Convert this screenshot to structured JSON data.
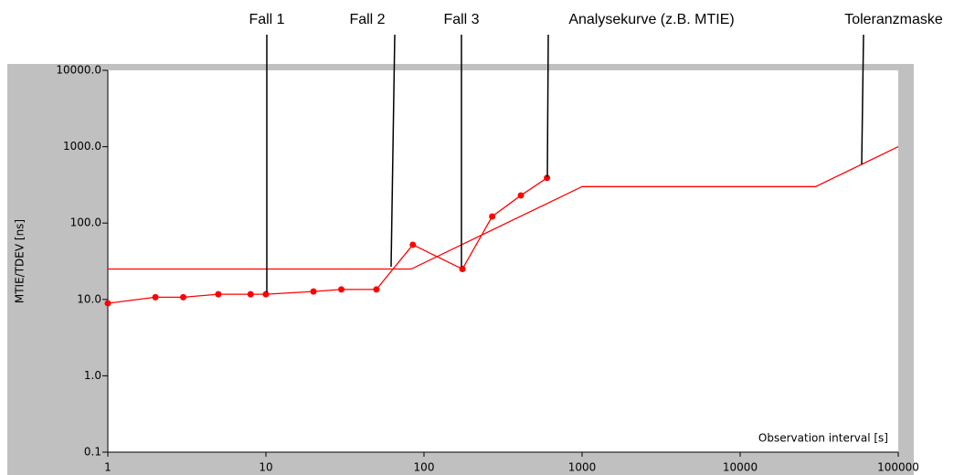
{
  "chart_data": {
    "type": "line",
    "y_label": "MTIE/TDEV [ns]",
    "x_label": "Observation interval  [s]",
    "xlog": true,
    "ylog": true,
    "xlim": [
      1,
      100000
    ],
    "ylim": [
      0.1,
      10000
    ],
    "xticks": [
      1,
      10,
      100,
      1000,
      10000,
      100000
    ],
    "yticks": [
      {
        "value": 0.1,
        "label": "0.1"
      },
      {
        "value": 1,
        "label": "1.0"
      },
      {
        "value": 10,
        "label": "10.0"
      },
      {
        "value": 100,
        "label": "100.0"
      },
      {
        "value": 1000,
        "label": "1000.0"
      },
      {
        "value": 10000,
        "label": "10000.0"
      }
    ],
    "series": [
      {
        "color": "#ff0000",
        "markers": true,
        "x": [
          1,
          2,
          3,
          5,
          8,
          10,
          20,
          30,
          50,
          85,
          175,
          270,
          410,
          600
        ],
        "values": [
          8.9,
          10.7,
          10.7,
          11.7,
          11.7,
          11.7,
          12.7,
          13.5,
          13.5,
          52,
          25,
          122,
          230,
          390
        ]
      },
      {
        "color": "#ff0000",
        "markers": false,
        "x": [
          1,
          83,
          1000,
          30000,
          100000
        ],
        "values": [
          25,
          25,
          300,
          300,
          1000
        ]
      }
    ],
    "annotations": [
      {
        "text": "Fall 1"
      },
      {
        "text": "Fall 2"
      },
      {
        "text": "Fall 3"
      },
      {
        "text": "Analysekurve (z.B. MTIE)"
      },
      {
        "text": "Toleranzmaske"
      }
    ]
  }
}
